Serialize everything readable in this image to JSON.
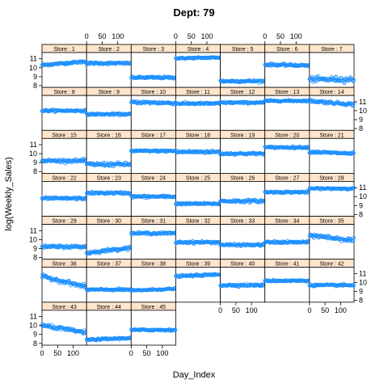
{
  "chart_data": {
    "type": "scatter",
    "title": "Dept: 79",
    "xlabel": "Day_Index",
    "ylabel": "log(Weekly_Sales)",
    "xlim": [
      0,
      143
    ],
    "ylim": [
      7.8,
      11.7
    ],
    "x_ticks": [
      "0",
      "50",
      "100"
    ],
    "y_ticks": [
      "8",
      "9",
      "10",
      "11"
    ],
    "marker": "open-circle",
    "colors": {
      "points": "#1e90ff",
      "strip": "#ffe5cc",
      "frame": "#000000",
      "text": "#000000"
    },
    "layout": "7 columns x 7 rows, lattice panels",
    "panels": [
      {
        "label": "Store : 1",
        "level": 10.5,
        "trend": 0.2,
        "spread": 0.12
      },
      {
        "label": "Store : 2",
        "level": 10.5,
        "trend": 0.0,
        "spread": 0.12
      },
      {
        "label": "Store : 3",
        "level": 8.9,
        "trend": 0.0,
        "spread": 0.12
      },
      {
        "label": "Store : 4",
        "level": 11.1,
        "trend": 0.05,
        "spread": 0.08
      },
      {
        "label": "Store : 5",
        "level": 8.5,
        "trend": 0.0,
        "spread": 0.12
      },
      {
        "label": "Store : 6",
        "level": 10.3,
        "trend": -0.05,
        "spread": 0.12
      },
      {
        "label": "Store : 7",
        "level": 8.7,
        "trend": 0.0,
        "spread": 0.28
      },
      {
        "label": "Store : 8",
        "level": 10.0,
        "trend": 0.0,
        "spread": 0.1
      },
      {
        "label": "Store : 9",
        "level": 9.6,
        "trend": 0.0,
        "spread": 0.1
      },
      {
        "label": "Store : 10",
        "level": 10.9,
        "trend": -0.05,
        "spread": 0.15
      },
      {
        "label": "Store : 11",
        "level": 10.8,
        "trend": 0.0,
        "spread": 0.12
      },
      {
        "label": "Store : 12",
        "level": 10.9,
        "trend": 0.0,
        "spread": 0.1
      },
      {
        "label": "Store : 13",
        "level": 11.1,
        "trend": 0.0,
        "spread": 0.08
      },
      {
        "label": "Store : 14",
        "level": 10.9,
        "trend": -0.2,
        "spread": 0.15
      },
      {
        "label": "Store : 15",
        "level": 9.2,
        "trend": 0.0,
        "spread": 0.15
      },
      {
        "label": "Store : 16",
        "level": 8.8,
        "trend": 0.0,
        "spread": 0.2
      },
      {
        "label": "Store : 17",
        "level": 10.3,
        "trend": 0.0,
        "spread": 0.1
      },
      {
        "label": "Store : 18",
        "level": 10.2,
        "trend": 0.0,
        "spread": 0.15
      },
      {
        "label": "Store : 19",
        "level": 10.0,
        "trend": 0.0,
        "spread": 0.12
      },
      {
        "label": "Store : 20",
        "level": 10.7,
        "trend": 0.0,
        "spread": 0.1
      },
      {
        "label": "Store : 21",
        "level": 10.1,
        "trend": -0.1,
        "spread": 0.12
      },
      {
        "label": "Store : 22",
        "level": 9.8,
        "trend": 0.0,
        "spread": 0.12
      },
      {
        "label": "Store : 23",
        "level": 10.4,
        "trend": 0.0,
        "spread": 0.12
      },
      {
        "label": "Store : 24",
        "level": 10.0,
        "trend": 0.0,
        "spread": 0.12
      },
      {
        "label": "Store : 25",
        "level": 9.2,
        "trend": 0.0,
        "spread": 0.1
      },
      {
        "label": "Store : 26",
        "level": 9.5,
        "trend": 0.0,
        "spread": 0.15
      },
      {
        "label": "Store : 27",
        "level": 10.5,
        "trend": 0.0,
        "spread": 0.1
      },
      {
        "label": "Store : 28",
        "level": 10.9,
        "trend": 0.0,
        "spread": 0.08
      },
      {
        "label": "Store : 29",
        "level": 9.2,
        "trend": 0.0,
        "spread": 0.15
      },
      {
        "label": "Store : 30",
        "level": 8.8,
        "trend": 0.3,
        "spread": 0.15
      },
      {
        "label": "Store : 31",
        "level": 10.7,
        "trend": 0.0,
        "spread": 0.12
      },
      {
        "label": "Store : 32",
        "level": 9.7,
        "trend": 0.0,
        "spread": 0.12
      },
      {
        "label": "Store : 33",
        "level": 9.4,
        "trend": 0.0,
        "spread": 0.12
      },
      {
        "label": "Store : 34",
        "level": 9.7,
        "trend": 0.0,
        "spread": 0.12
      },
      {
        "label": "Store : 35",
        "level": 10.2,
        "trend": -0.3,
        "spread": 0.22
      },
      {
        "label": "Store : 36",
        "level": 10.1,
        "trend": -0.6,
        "spread": 0.2
      },
      {
        "label": "Store : 37",
        "level": 9.2,
        "trend": 0.0,
        "spread": 0.1
      },
      {
        "label": "Store : 38",
        "level": 9.2,
        "trend": 0.1,
        "spread": 0.08
      },
      {
        "label": "Store : 39",
        "level": 10.8,
        "trend": 0.1,
        "spread": 0.1
      },
      {
        "label": "Store : 40",
        "level": 9.7,
        "trend": 0.0,
        "spread": 0.12
      },
      {
        "label": "Store : 41",
        "level": 10.2,
        "trend": 0.0,
        "spread": 0.1
      },
      {
        "label": "Store : 42",
        "level": 9.7,
        "trend": 0.0,
        "spread": 0.1
      },
      {
        "label": "Store : 43",
        "level": 9.6,
        "trend": -0.4,
        "spread": 0.18
      },
      {
        "label": "Store : 44",
        "level": 8.5,
        "trend": 0.1,
        "spread": 0.1
      },
      {
        "label": "Store : 45",
        "level": 9.5,
        "trend": 0.0,
        "spread": 0.1
      }
    ]
  }
}
